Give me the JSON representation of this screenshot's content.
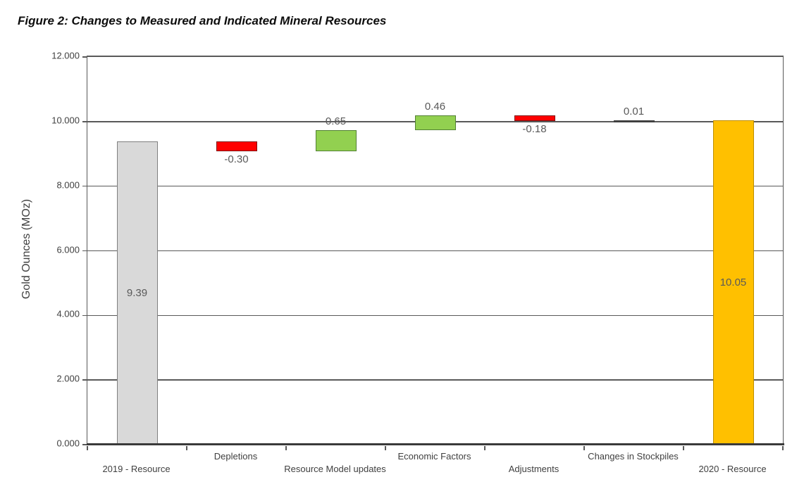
{
  "figure": {
    "title": "Figure 2: Changes to Measured and Indicated Mineral Resources"
  },
  "chart_data": {
    "type": "bar",
    "subtype": "waterfall",
    "title": "Figure 2: Changes to Measured and Indicated Mineral Resources",
    "xlabel": "",
    "ylabel": "Gold Ounces (MOz)",
    "ylim": [
      0,
      12
    ],
    "ytick_step": 2,
    "yticks": [
      {
        "value": 0,
        "label": "0.000"
      },
      {
        "value": 2,
        "label": "2.000"
      },
      {
        "value": 4,
        "label": "4.000"
      },
      {
        "value": 6,
        "label": "6.000"
      },
      {
        "value": 8,
        "label": "8.000"
      },
      {
        "value": 10,
        "label": "10.000"
      },
      {
        "value": 12,
        "label": "12.000"
      }
    ],
    "grid": "horizontal",
    "legend": "none",
    "categories": [
      "2019 - Resource",
      "Depletions",
      "Resource Model updates",
      "Economic Factors",
      "Adjustments",
      "Changes in Stockpiles",
      "2020 - Resource"
    ],
    "bars": [
      {
        "category": "2019 - Resource",
        "value": 9.39,
        "label": "9.39",
        "start": 0,
        "end": 9.39,
        "role": "total",
        "fill": "#d9d9d9",
        "border": "#7f7f7f",
        "label_pos": "inside",
        "axis_row": "lower"
      },
      {
        "category": "Depletions",
        "value": -0.3,
        "label": "-0.30",
        "start": 9.09,
        "end": 9.39,
        "role": "decrease",
        "fill": "#ff0000",
        "border": "#7f1010",
        "label_pos": "below",
        "axis_row": "upper"
      },
      {
        "category": "Resource Model updates",
        "value": 0.65,
        "label": "0.65",
        "start": 9.09,
        "end": 9.74,
        "role": "increase",
        "fill": "#92d050",
        "border": "#538135",
        "label_pos": "above",
        "axis_row": "lower"
      },
      {
        "category": "Economic Factors",
        "value": 0.46,
        "label": "0.46",
        "start": 9.74,
        "end": 10.2,
        "role": "increase",
        "fill": "#92d050",
        "border": "#538135",
        "label_pos": "above",
        "axis_row": "upper"
      },
      {
        "category": "Adjustments",
        "value": -0.18,
        "label": "-0.18",
        "start": 10.02,
        "end": 10.2,
        "role": "decrease",
        "fill": "#ff0000",
        "border": "#7f1010",
        "label_pos": "below",
        "axis_row": "lower"
      },
      {
        "category": "Changes in Stockpiles",
        "value": 0.01,
        "label": "0.01",
        "start": 10.02,
        "end": 10.03,
        "role": "increase",
        "fill": "#404040",
        "border": "#404040",
        "label_pos": "above",
        "axis_row": "upper"
      },
      {
        "category": "2020 - Resource",
        "value": 10.05,
        "label": "10.05",
        "start": 0,
        "end": 10.05,
        "role": "total",
        "fill": "#ffc000",
        "border": "#bf8f00",
        "label_pos": "inside",
        "axis_row": "lower"
      }
    ],
    "colors": {
      "total_start": "#d9d9d9",
      "decrease": "#ff0000",
      "increase": "#92d050",
      "total_end": "#ffc000",
      "gridline": "#595959",
      "axis_text": "#404040",
      "value_text": "#595959"
    }
  }
}
